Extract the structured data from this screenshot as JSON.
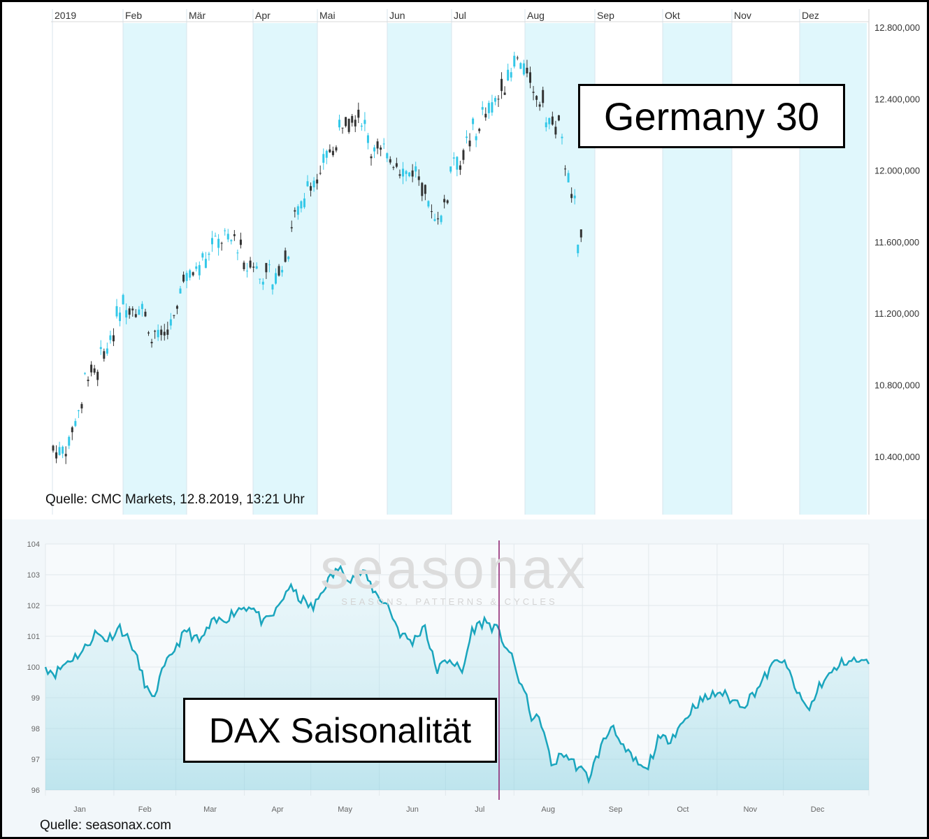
{
  "top_panel": {
    "title": "Germany 30",
    "source": "Quelle: CMC Markets, 12.8.2019, 13:21 Uhr"
  },
  "bottom_panel": {
    "title": "DAX Saisonalität",
    "source": "Quelle: seasonax.com",
    "watermark": "seasonax",
    "watermark_sub": "SEASONS, PATTERNS & CYCLES"
  },
  "colors": {
    "up": "#33c8e8",
    "down": "#333333",
    "band": "#e0f7fc",
    "line": "#1aa5bd",
    "marker": "#8b1a6b"
  },
  "chart_data": [
    {
      "type": "candlestick",
      "title": "Germany 30",
      "x_ticks": [
        "2019",
        "Feb",
        "Mär",
        "Apr",
        "Mai",
        "Jun",
        "Jul",
        "Aug",
        "Sep",
        "Okt",
        "Nov",
        "Dez"
      ],
      "y_ticks": [
        "12.800,000",
        "12.400,000",
        "12.000,000",
        "11.600,000",
        "11.200,000",
        "10.800,000",
        "10.400,000"
      ],
      "ylim": [
        10200,
        12810
      ],
      "grid": false,
      "weekly_closes": [
        10450,
        10850,
        10900,
        11200,
        11300,
        11100,
        11000,
        11350,
        11450,
        11600,
        11650,
        11500,
        11450,
        11350,
        11700,
        11900,
        12050,
        12200,
        12350,
        12100,
        12100,
        12000,
        11950,
        11650,
        12000,
        12150,
        12300,
        12400,
        12650,
        12500,
        12300,
        12200,
        11500,
        11700
      ]
    },
    {
      "type": "line",
      "title": "DAX Saisonalität",
      "categories": [
        "Jan",
        "Feb",
        "Mar",
        "Apr",
        "May",
        "Jun",
        "Jul",
        "Aug",
        "Sep",
        "Oct",
        "Nov",
        "Dec"
      ],
      "ylim": [
        96,
        104
      ],
      "y_ticks": [
        104,
        103,
        102,
        101,
        100,
        99,
        98,
        97,
        96
      ],
      "grid": true,
      "current_day_marker": "Aug 12",
      "series": [
        {
          "points": [
            [
              0,
              100
            ],
            [
              4,
              99.8
            ],
            [
              9,
              100.2
            ],
            [
              15,
              100.5
            ],
            [
              20,
              101.1
            ],
            [
              25,
              100.9
            ],
            [
              30,
              101.3
            ],
            [
              35,
              100.7
            ],
            [
              40,
              99.5
            ],
            [
              43,
              98.9
            ],
            [
              47,
              99.8
            ],
            [
              52,
              100.6
            ],
            [
              57,
              101.2
            ],
            [
              62,
              100.8
            ],
            [
              67,
              101.4
            ],
            [
              73,
              101.6
            ],
            [
              78,
              101.9
            ],
            [
              83,
              102.0
            ],
            [
              88,
              101.4
            ],
            [
              93,
              101.8
            ],
            [
              98,
              102.6
            ],
            [
              103,
              102.2
            ],
            [
              108,
              101.9
            ],
            [
              113,
              102.7
            ],
            [
              118,
              103.2
            ],
            [
              123,
              102.9
            ],
            [
              128,
              103.1
            ],
            [
              133,
              102.4
            ],
            [
              138,
              102.0
            ],
            [
              143,
              101.1
            ],
            [
              148,
              100.8
            ],
            [
              153,
              101.4
            ],
            [
              155,
              100.6
            ],
            [
              158,
              99.9
            ],
            [
              163,
              100.3
            ],
            [
              168,
              99.8
            ],
            [
              172,
              101.2
            ],
            [
              177,
              101.5
            ],
            [
              182,
              101.2
            ],
            [
              187,
              100.5
            ],
            [
              190,
              99.8
            ],
            [
              193,
              99.2
            ],
            [
              196,
              98.4
            ],
            [
              200,
              98.2
            ],
            [
              204,
              96.8
            ],
            [
              209,
              97.2
            ],
            [
              214,
              96.8
            ],
            [
              219,
              96.4
            ],
            [
              224,
              97.4
            ],
            [
              229,
              98.2
            ],
            [
              232,
              97.4
            ],
            [
              237,
              97.0
            ],
            [
              242,
              96.6
            ],
            [
              247,
              97.6
            ],
            [
              252,
              97.7
            ],
            [
              257,
              98.2
            ],
            [
              262,
              98.8
            ],
            [
              267,
              99.0
            ],
            [
              272,
              99.2
            ],
            [
              277,
              98.9
            ],
            [
              282,
              98.8
            ],
            [
              287,
              99.3
            ],
            [
              292,
              99.9
            ],
            [
              296,
              100.3
            ],
            [
              300,
              99.8
            ],
            [
              304,
              99.0
            ],
            [
              308,
              98.6
            ],
            [
              312,
              99.4
            ],
            [
              317,
              99.8
            ],
            [
              322,
              100.2
            ],
            [
              327,
              100.2
            ],
            [
              332,
              100.1
            ]
          ]
        }
      ]
    }
  ]
}
